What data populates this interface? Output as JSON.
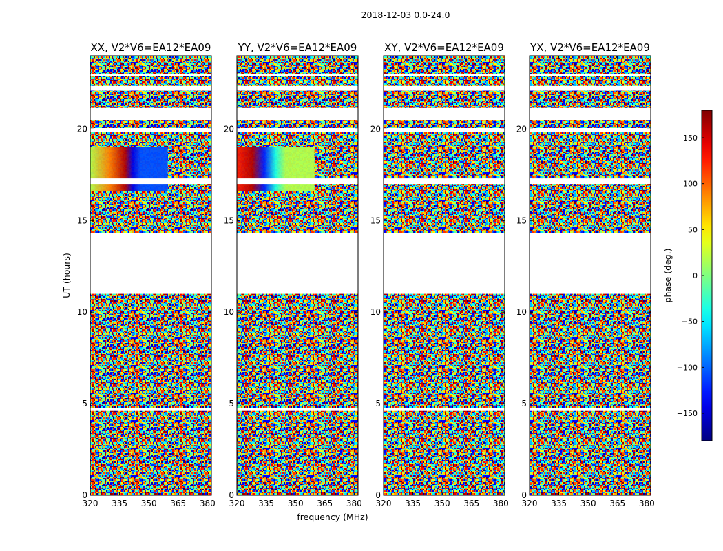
{
  "chart_data": {
    "type": "heatmap",
    "suptitle": "2018-12-03 0.0-24.0",
    "xlabel": "frequency (MHz)",
    "ylabel": "UT (hours)",
    "xlim": [
      320,
      382
    ],
    "ylim": [
      0,
      24
    ],
    "xticks": [
      320,
      335,
      350,
      365,
      380
    ],
    "yticks": [
      0,
      5,
      10,
      15,
      20
    ],
    "panels": [
      {
        "title": "XX, V2*V6=EA12*EA09"
      },
      {
        "title": "YY, V2*V6=EA12*EA09"
      },
      {
        "title": "XY, V2*V6=EA12*EA09"
      },
      {
        "title": "YX, V2*V6=EA12*EA09"
      }
    ],
    "flagged_gaps_hours": [
      [
        4.6,
        4.75
      ],
      [
        11.0,
        14.3
      ],
      [
        17.0,
        17.3
      ],
      [
        19.85,
        20.05
      ],
      [
        20.5,
        21.15
      ],
      [
        22.1,
        22.35
      ],
      [
        22.9,
        23.0
      ]
    ],
    "colorbar": {
      "label": "phase (deg.)",
      "min": -180,
      "max": 180,
      "ticks": [
        150,
        100,
        50,
        0,
        -50,
        -100,
        -150
      ],
      "tick_labels": [
        "150",
        "100",
        "50",
        "0",
        "−50",
        "−100",
        "−150"
      ],
      "colormap": "jet"
    }
  },
  "colors": {
    "axis": "#000000",
    "background": "#ffffff"
  }
}
